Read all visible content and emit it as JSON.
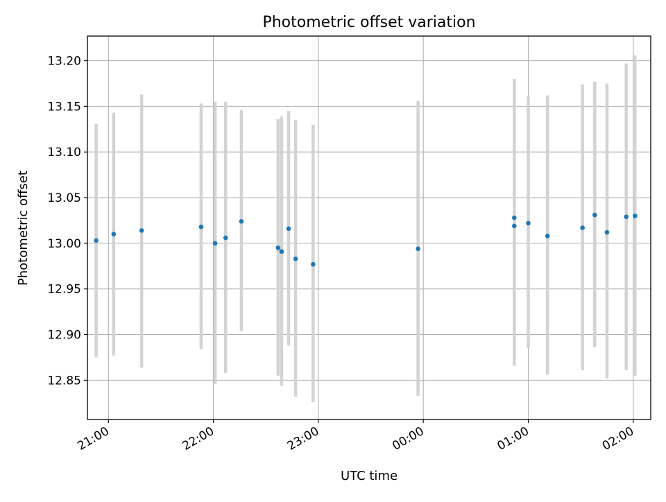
{
  "chart_data": {
    "type": "scatter",
    "title": "Photometric offset variation",
    "xlabel": "UTC time",
    "ylabel": "Photometric offset",
    "x_ticks": [
      "21:00",
      "22:00",
      "23:00",
      "00:00",
      "01:00",
      "02:00"
    ],
    "y_ticks": [
      "12.85",
      "12.90",
      "12.95",
      "13.00",
      "13.05",
      "13.10",
      "13.15",
      "13.20"
    ],
    "xlim": [
      "20:48",
      "02:10"
    ],
    "ylim": [
      12.807,
      13.227
    ],
    "grid": true,
    "error_bar_color": "#d3d3d3",
    "point_color": "#1f77b4",
    "series": [
      {
        "x": [
          "20:53",
          "21:03",
          "21:19",
          "21:53",
          "22:01",
          "22:07",
          "22:16",
          "22:37",
          "22:39",
          "22:43",
          "22:47",
          "22:57",
          "23:57",
          "00:52",
          "00:52",
          "01:00",
          "01:11",
          "01:31",
          "01:38",
          "01:45",
          "01:56",
          "02:01"
        ],
        "y": [
          13.003,
          13.01,
          13.014,
          13.018,
          13.0,
          13.006,
          13.024,
          12.995,
          12.991,
          13.016,
          12.983,
          12.977,
          12.994,
          13.028,
          13.019,
          13.022,
          13.008,
          13.017,
          13.031,
          13.012,
          13.029,
          13.03
        ],
        "err_low": [
          12.875,
          12.877,
          12.864,
          12.884,
          12.846,
          12.858,
          12.904,
          12.855,
          12.844,
          12.888,
          12.832,
          12.826,
          12.833,
          12.866,
          12.866,
          12.885,
          12.856,
          12.861,
          12.886,
          12.852,
          12.861,
          12.855
        ],
        "err_high": [
          13.131,
          13.143,
          13.163,
          13.153,
          13.155,
          13.155,
          13.146,
          13.136,
          13.139,
          13.145,
          13.135,
          13.13,
          13.156,
          13.18,
          13.173,
          13.161,
          13.162,
          13.174,
          13.177,
          13.175,
          13.197,
          13.206
        ]
      }
    ]
  }
}
